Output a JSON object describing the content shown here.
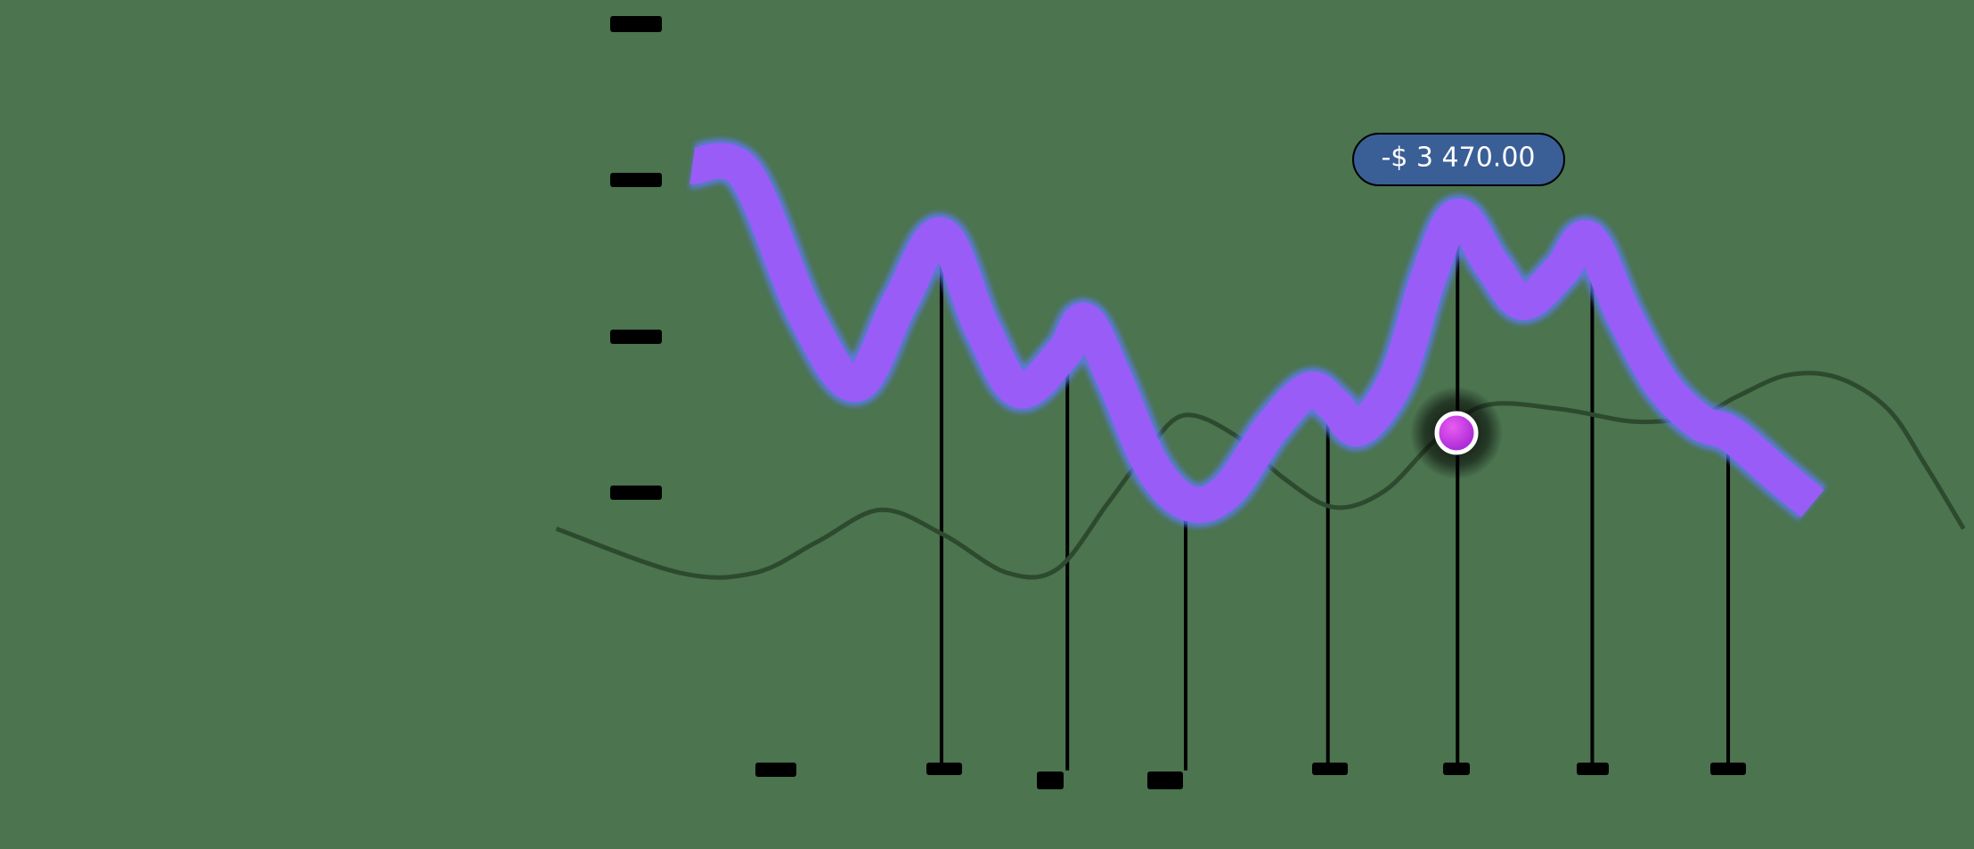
{
  "tooltip": {
    "label": "-$ 3 470.00"
  }
}
